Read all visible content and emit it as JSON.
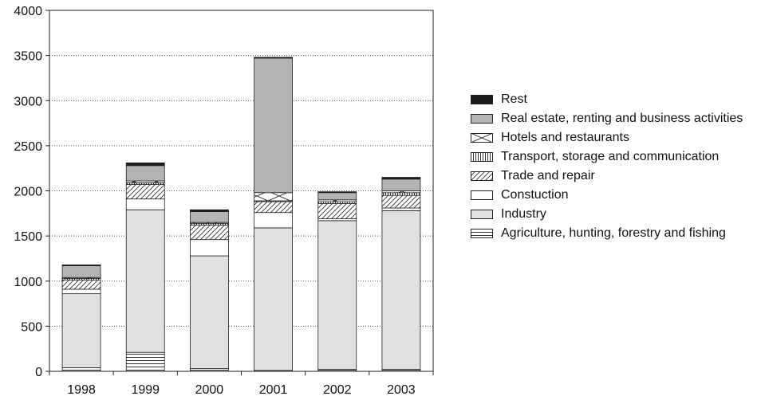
{
  "chart_data": {
    "type": "bar",
    "stacked": true,
    "title": "",
    "xlabel": "",
    "ylabel": "",
    "categories": [
      "1998",
      "1999",
      "2000",
      "2001",
      "2002",
      "2003"
    ],
    "ylim": [
      0,
      4000
    ],
    "yticks": [
      0,
      500,
      1000,
      1500,
      2000,
      2500,
      3000,
      3500,
      4000
    ],
    "grid": "horizontal-dotted",
    "legend_position": "right",
    "series": [
      {
        "name": "Agriculture, hunting, forestry and fishing",
        "pattern": "horizontal-lines",
        "values": [
          40,
          210,
          30,
          10,
          20,
          20
        ]
      },
      {
        "name": "Industry",
        "pattern": "light-gray",
        "values": [
          820,
          1580,
          1250,
          1580,
          1650,
          1760
        ]
      },
      {
        "name": "Constuction",
        "pattern": "white",
        "values": [
          50,
          120,
          180,
          170,
          20,
          30
        ]
      },
      {
        "name": "Trade and repair",
        "pattern": "diagonal-hatch",
        "values": [
          100,
          160,
          160,
          120,
          170,
          140
        ]
      },
      {
        "name": "Transport, storage and communication",
        "pattern": "vertical-lines",
        "values": [
          20,
          20,
          20,
          10,
          20,
          30
        ]
      },
      {
        "name": "Hotels and restaurants",
        "pattern": "cross-x",
        "values": [
          10,
          20,
          10,
          90,
          20,
          20
        ]
      },
      {
        "name": "Real estate, renting and business activities",
        "pattern": "mid-gray",
        "values": [
          130,
          170,
          120,
          1490,
          80,
          130
        ]
      },
      {
        "name": "Rest",
        "pattern": "black",
        "values": [
          10,
          30,
          20,
          10,
          10,
          20
        ]
      }
    ],
    "legend_order": [
      "Rest",
      "Real estate, renting and business activities",
      "Hotels and restaurants",
      "Transport, storage and communication",
      "Trade and repair",
      "Constuction",
      "Industry",
      "Agriculture, hunting, forestry and fishing"
    ]
  }
}
